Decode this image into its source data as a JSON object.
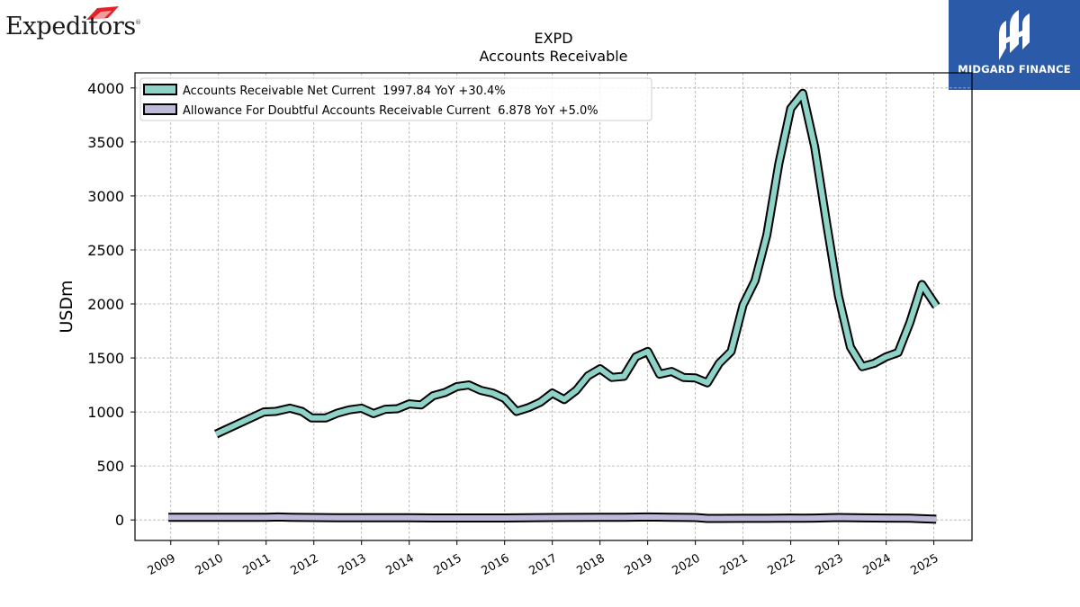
{
  "brand": {
    "left_logo": "Expeditors",
    "left_logo_mark": "®",
    "right_logo": "MIDGARD FINANCE"
  },
  "chart_data": {
    "type": "line",
    "title": "EXPD",
    "subtitle": "Accounts Receivable",
    "ylabel": "USDm",
    "xlabel": "",
    "ylim": [
      -190,
      4140
    ],
    "xlim": [
      2008.25,
      2025.8
    ],
    "yticks": [
      0,
      500,
      1000,
      1500,
      2000,
      2500,
      3000,
      3500,
      4000
    ],
    "xticks": [
      2009,
      2010,
      2011,
      2012,
      2013,
      2014,
      2015,
      2016,
      2017,
      2018,
      2019,
      2020,
      2021,
      2022,
      2023,
      2024,
      2025
    ],
    "grid": true,
    "legend_position": "top-left",
    "series": [
      {
        "name": "Accounts Receivable Net Current  1997.84 YoY +30.4%",
        "color": "#8dd3c7",
        "x": [
          2009.95,
          2010.95,
          2011.2,
          2011.5,
          2011.75,
          2011.95,
          2012.25,
          2012.5,
          2012.75,
          2013.0,
          2013.25,
          2013.5,
          2013.75,
          2014.0,
          2014.25,
          2014.5,
          2014.75,
          2015.0,
          2015.25,
          2015.5,
          2015.75,
          2016.0,
          2016.25,
          2016.5,
          2016.75,
          2017.0,
          2017.25,
          2017.5,
          2017.75,
          2018.0,
          2018.25,
          2018.5,
          2018.75,
          2019.0,
          2019.25,
          2019.5,
          2019.75,
          2020.0,
          2020.25,
          2020.5,
          2020.75,
          2021.0,
          2021.25,
          2021.5,
          2021.75,
          2022.0,
          2022.25,
          2022.5,
          2022.75,
          2023.0,
          2023.25,
          2023.5,
          2023.75,
          2024.0,
          2024.25,
          2024.5,
          2024.75,
          2025.05
        ],
        "values": [
          795,
          1000,
          1005,
          1035,
          1005,
          945,
          945,
          990,
          1020,
          1035,
          985,
          1025,
          1030,
          1075,
          1065,
          1150,
          1180,
          1235,
          1250,
          1200,
          1175,
          1125,
          1005,
          1040,
          1090,
          1175,
          1115,
          1200,
          1335,
          1400,
          1320,
          1330,
          1510,
          1560,
          1350,
          1375,
          1320,
          1315,
          1270,
          1450,
          1560,
          1990,
          2215,
          2640,
          3300,
          3810,
          3950,
          3460,
          2750,
          2075,
          1600,
          1420,
          1450,
          1510,
          1550,
          1830,
          2180,
          1980
        ]
      },
      {
        "name": "Allowance For Doubtful Accounts Receivable Current  6.878 YoY +5.0%",
        "color": "#bebada",
        "x": [
          2008.95,
          2010.0,
          2011.0,
          2011.25,
          2011.5,
          2012.0,
          2012.5,
          2013.0,
          2013.5,
          2014.0,
          2014.5,
          2015.0,
          2015.5,
          2016.0,
          2016.5,
          2017.0,
          2017.5,
          2018.0,
          2018.5,
          2019.0,
          2019.5,
          2020.0,
          2020.25,
          2020.5,
          2021.0,
          2021.5,
          2022.0,
          2022.25,
          2022.5,
          2023.0,
          2023.5,
          2024.0,
          2024.5,
          2025.05
        ],
        "values": [
          25,
          25,
          25,
          27,
          25,
          22,
          20,
          20,
          20,
          20,
          18,
          18,
          18,
          18,
          20,
          22,
          23,
          25,
          25,
          27,
          25,
          22,
          14,
          14,
          15,
          15,
          17,
          16,
          17,
          22,
          19,
          17,
          16,
          6.9
        ]
      }
    ]
  }
}
